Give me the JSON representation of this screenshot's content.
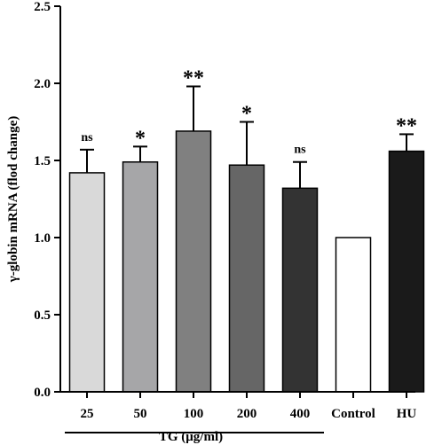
{
  "chart_data": {
    "type": "bar",
    "title": "",
    "ylabel": "γ-globin mRNA (flod change)",
    "xlabel": "TG (μg/ml)",
    "ylim": [
      0,
      2.5
    ],
    "yticks": [
      "0.0",
      "0.5",
      "1.0",
      "1.5",
      "2.0",
      "2.5"
    ],
    "categories": [
      "25",
      "50",
      "100",
      "200",
      "400",
      "Control",
      "HU"
    ],
    "values": [
      1.42,
      1.49,
      1.69,
      1.47,
      1.32,
      1.0,
      1.56
    ],
    "errors": [
      0.15,
      0.1,
      0.29,
      0.28,
      0.17,
      0,
      0.11
    ],
    "significance": [
      "ns",
      "*",
      "**",
      "*",
      "ns",
      "",
      "**"
    ],
    "bar_colors": [
      "#d9d9d9",
      "#a6a6a8",
      "#808080",
      "#666666",
      "#333333",
      "#ffffff",
      "#1a1a1a"
    ],
    "group_bracket": {
      "label": "TG (μg/ml)",
      "from_category": "25",
      "to_category": "400"
    },
    "grid": false,
    "legend": "none"
  }
}
